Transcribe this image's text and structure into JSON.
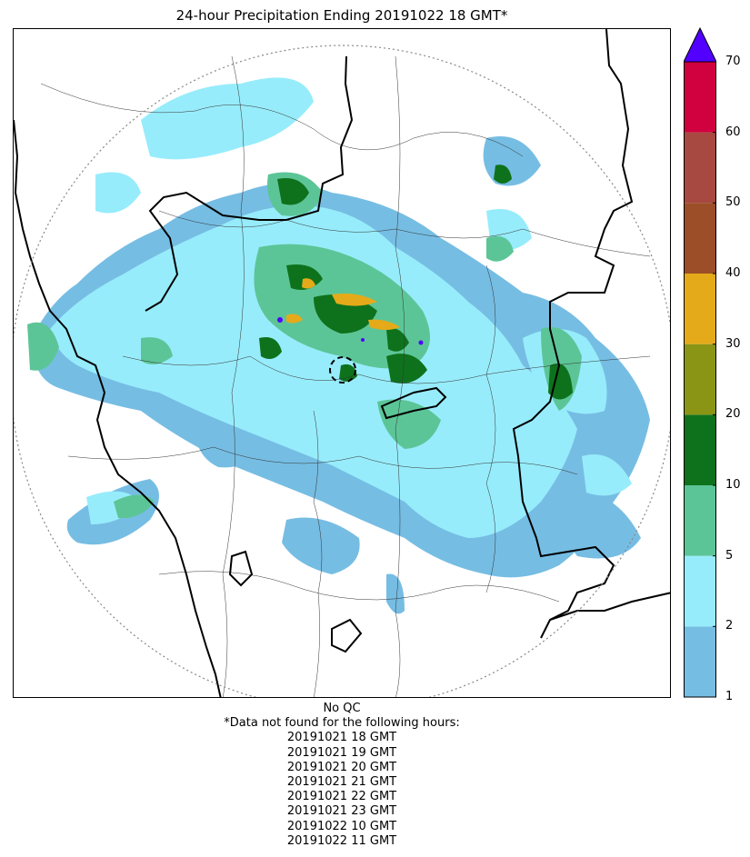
{
  "title": "24-hour Precipitation Ending 20191022 18 GMT*",
  "colorbar": {
    "ticks": [
      "1",
      "2",
      "5",
      "10",
      "20",
      "30",
      "40",
      "50",
      "60",
      "70"
    ],
    "colors": [
      "#76bde3",
      "#97ecfb",
      "#5cc597",
      "#0e721c",
      "#8a9516",
      "#e5aa19",
      "#9c4e28",
      "#a74940",
      "#d1003f"
    ],
    "over_color": "#5200ff"
  },
  "footer": {
    "qc": "No QC",
    "note": "*Data not found for the following hours:",
    "hours": [
      "20191021 18 GMT",
      "20191021 19 GMT",
      "20191021 20 GMT",
      "20191021 21 GMT",
      "20191021 22 GMT",
      "20191021 23 GMT",
      "20191022 10 GMT",
      "20191022 11 GMT"
    ]
  }
}
